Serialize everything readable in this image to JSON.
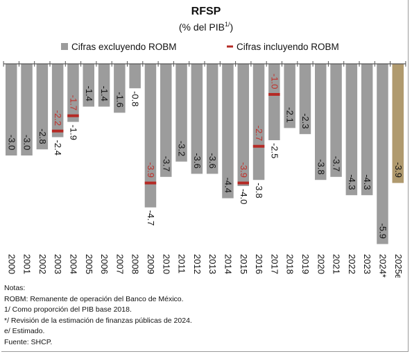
{
  "chart_data": {
    "type": "bar",
    "title": "RFSP",
    "subtitle_pre": "(% del PIB",
    "subtitle_sup": "1/",
    "subtitle_post": ")",
    "legend": [
      {
        "label": "Cifras excluyendo ROBM",
        "marker": "square"
      },
      {
        "label": "Cifras incluyendo ROBM",
        "marker": "dash"
      }
    ],
    "legend_position": "top",
    "grid": false,
    "ylim": [
      -6.0,
      0
    ],
    "categories": [
      "2000",
      "2001",
      "2002",
      "2003",
      "2004",
      "2005",
      "2006",
      "2007",
      "2008",
      "2009",
      "2010",
      "2011",
      "2012",
      "2013",
      "2014",
      "2015",
      "2016",
      "2017",
      "2018",
      "2019",
      "2020",
      "2021",
      "2022",
      "2023",
      "2024*",
      "2025e"
    ],
    "series": [
      {
        "name": "Cifras excluyendo ROBM",
        "values": [
          -3.0,
          -3.0,
          -2.8,
          -2.4,
          -1.9,
          -1.4,
          -1.4,
          -1.6,
          -0.8,
          -4.7,
          -3.7,
          -3.2,
          -3.6,
          -3.6,
          -4.4,
          -4.0,
          -3.8,
          -2.5,
          -2.1,
          -2.3,
          -3.8,
          -3.7,
          -4.3,
          -4.3,
          -5.9,
          -3.9
        ],
        "labels": [
          "-3.0",
          "-3.0",
          "-2.8",
          "-2.4",
          "-1.9",
          "-1.4",
          "-1.4",
          "-1.6",
          "-0.8",
          "-4.7",
          "-3.7",
          "-3.2",
          "-3.6",
          "-3.6",
          "-4.4",
          "-4.0",
          "-3.8",
          "-2.5",
          "-2.1",
          "-2.3",
          "-3.8",
          "-3.7",
          "-4.3",
          "-4.3",
          "-5.9",
          "-3.9"
        ]
      },
      {
        "name": "Cifras incluyendo ROBM",
        "values": [
          null,
          null,
          null,
          -2.2,
          -1.7,
          null,
          null,
          null,
          null,
          -3.9,
          null,
          null,
          null,
          null,
          null,
          -3.9,
          -2.7,
          -1.0,
          null,
          null,
          null,
          null,
          null,
          null,
          null,
          null
        ],
        "labels": [
          null,
          null,
          null,
          "-2.2",
          "-1.7",
          null,
          null,
          null,
          null,
          "-3.9",
          null,
          null,
          null,
          null,
          null,
          "-3.9",
          "-2.7",
          "-1.0",
          null,
          null,
          null,
          null,
          null,
          null,
          null,
          null
        ]
      }
    ],
    "highlight_category": "2025e"
  },
  "colors": {
    "bar": "#9c9c9c",
    "bar_estimate": "#b09a6e",
    "robm": "#b52a25",
    "robm_label": "#c0302a",
    "axis": "#555555",
    "text": "#111111"
  },
  "notes": [
    "Notas:",
    "ROBM: Remanente de operación del Banco de México.",
    "1/ Como proporción del PIB base 2018.",
    "*/ Revisión de la estimación de finanzas públicas de 2024.",
    "e/ Estimado.",
    "Fuente: SHCP."
  ]
}
